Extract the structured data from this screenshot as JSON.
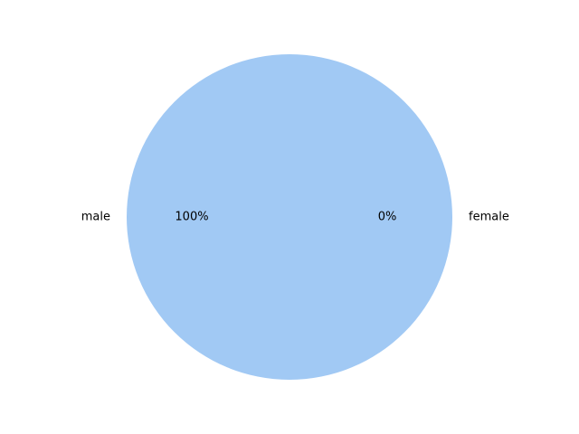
{
  "chart_data": {
    "type": "pie",
    "title": "",
    "slices": [
      {
        "label": "male",
        "value": 100,
        "pct_label": "100%",
        "color": "#a1c9f4"
      },
      {
        "label": "female",
        "value": 0,
        "pct_label": "0%",
        "color": "#ffb482"
      }
    ],
    "start_angle_deg": 0,
    "direction": "counterclockwise",
    "legend": "none"
  }
}
